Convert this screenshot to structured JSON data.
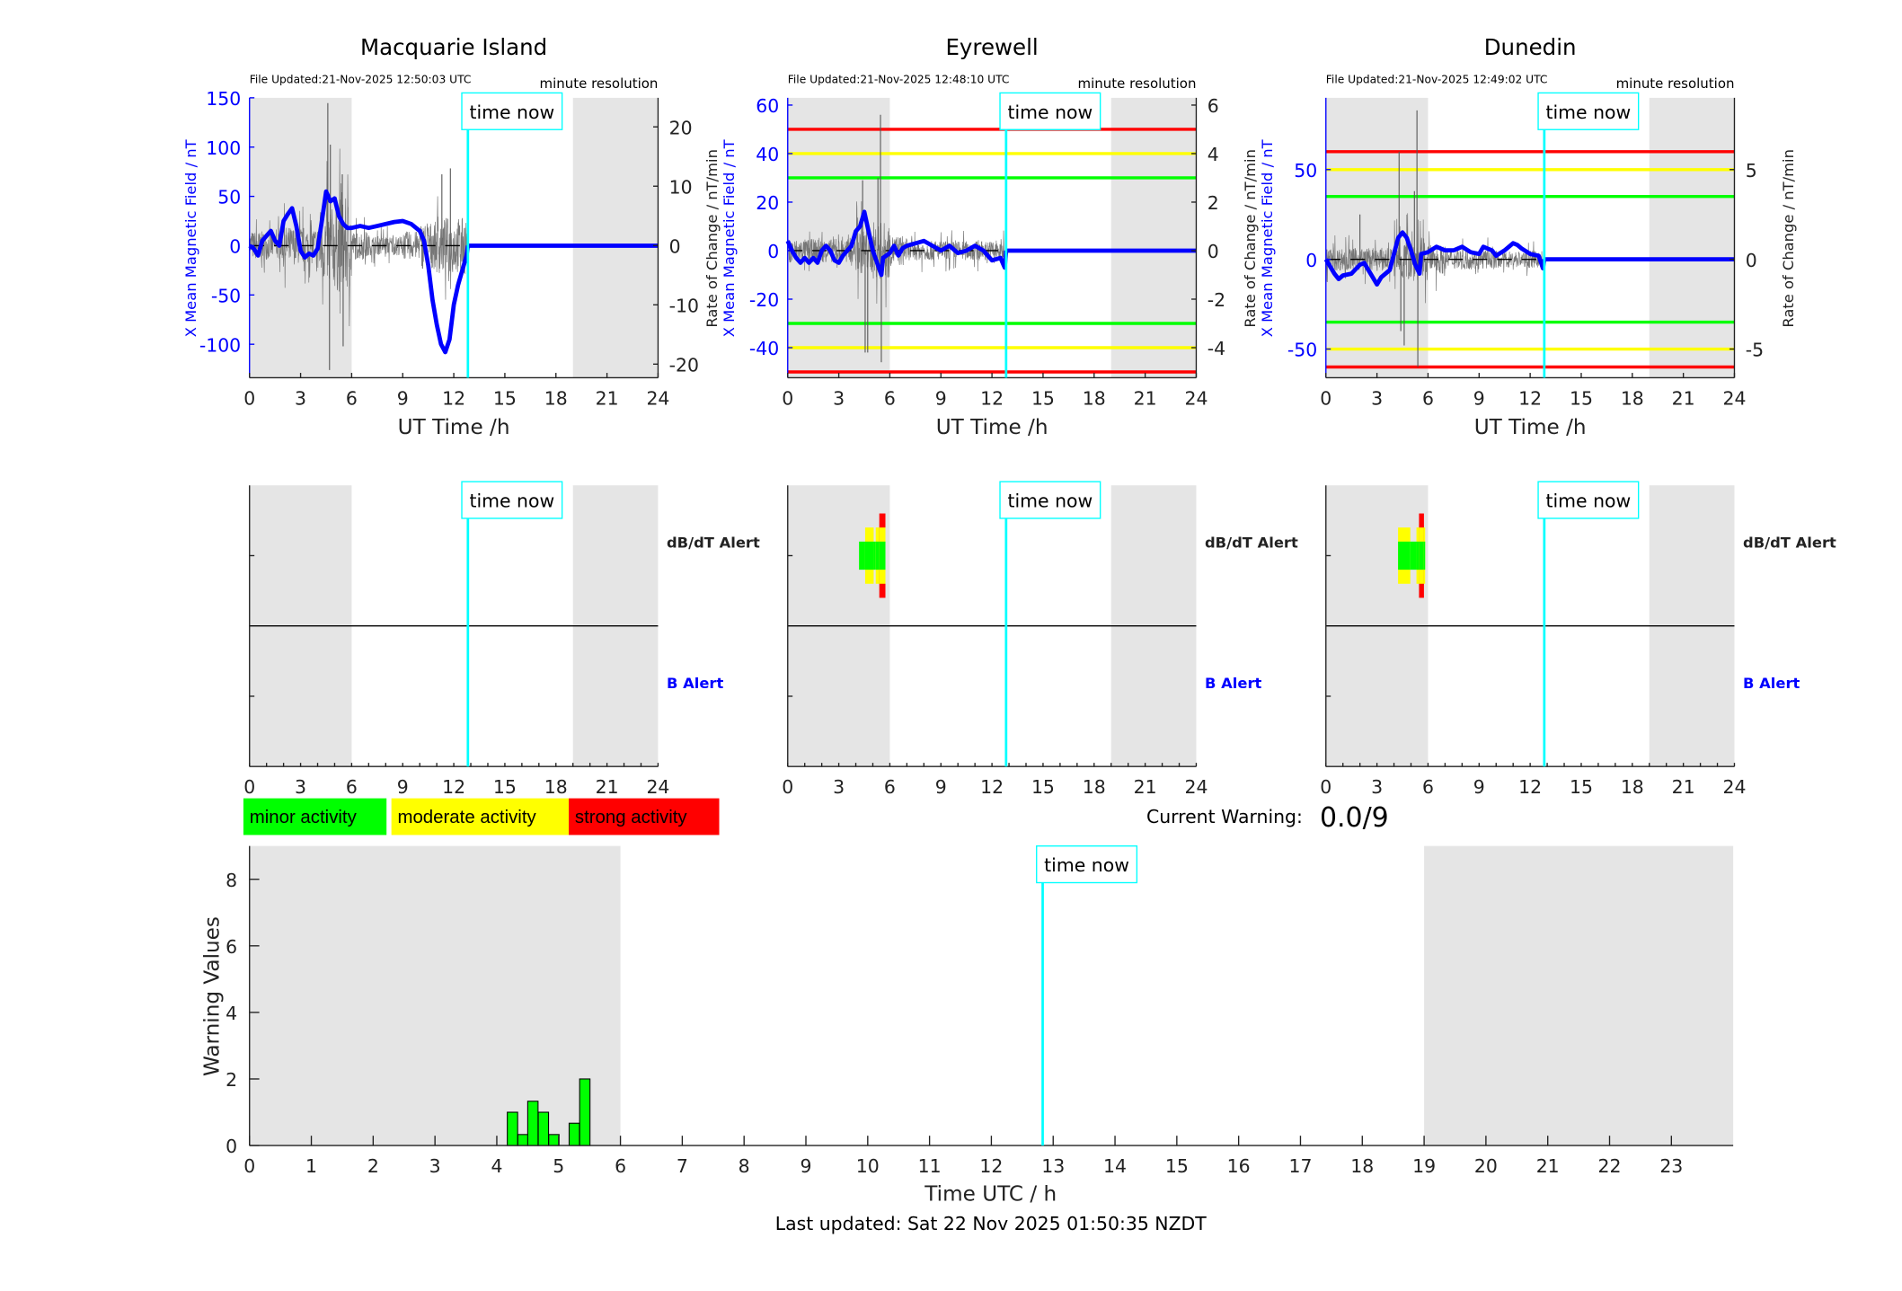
{
  "time_now_label": "time now",
  "time_now_h": 12.83,
  "night_bands": [
    [
      0,
      6
    ],
    [
      19,
      24
    ]
  ],
  "colors": {
    "minor": "#00ff00",
    "moderate": "#ffff00",
    "strong": "#ff0000",
    "now": "#00ffff",
    "trace": "#0000ff",
    "night": "#e5e5e5"
  },
  "top_xlabel": "UT Time /h",
  "left_ylabel": "X Mean Magnetic Field / nT",
  "right_ylabel": "Rate of Change / nT/min",
  "dbdt_alert_label": "dB/dT Alert",
  "b_alert_label": "B Alert",
  "xticks": [
    0,
    3,
    6,
    9,
    12,
    15,
    18,
    21,
    24
  ],
  "chart_data": [
    {
      "type": "line",
      "title": "Macquarie Island",
      "file_updated": "File Updated:21-Nov-2025 12:50:03 UTC",
      "resolution": "minute resolution",
      "xlim": [
        0,
        24
      ],
      "ylim_left": [
        -134,
        150
      ],
      "yticks_left": [
        -100,
        -50,
        0,
        50,
        100,
        150
      ],
      "ylim_right": [
        -22.3,
        24.9
      ],
      "yticks_right": [
        -20,
        -10,
        0,
        10,
        20
      ],
      "thresholds": [],
      "x": [
        0,
        0.25,
        0.5,
        0.75,
        1,
        1.25,
        1.5,
        1.75,
        2,
        2.25,
        2.5,
        2.75,
        3,
        3.25,
        3.5,
        3.75,
        4,
        4.25,
        4.5,
        4.75,
        5,
        5.25,
        5.5,
        5.75,
        6,
        6.5,
        7,
        7.5,
        8,
        8.5,
        9,
        9.5,
        10,
        10.25,
        10.5,
        10.75,
        11,
        11.25,
        11.5,
        11.75,
        12,
        12.25,
        12.5,
        12.75,
        12.83
      ],
      "y": [
        0,
        -3,
        -10,
        5,
        10,
        15,
        5,
        0,
        25,
        32,
        38,
        20,
        -5,
        -12,
        -8,
        -10,
        -3,
        25,
        55,
        45,
        48,
        30,
        22,
        18,
        18,
        20,
        18,
        20,
        22,
        24,
        25,
        22,
        15,
        5,
        -20,
        -55,
        -80,
        -100,
        -108,
        -95,
        -60,
        -40,
        -25,
        -10,
        0
      ],
      "dbdt_envelope": [
        3,
        3,
        4,
        4,
        8,
        10,
        3,
        2,
        2,
        3,
        5,
        6,
        6
      ],
      "dbdt_spikes": [
        [
          4.6,
          24
        ],
        [
          4.7,
          -21
        ],
        [
          4.75,
          17
        ],
        [
          5.45,
          12
        ],
        [
          5.5,
          -17
        ],
        [
          11.3,
          12
        ],
        [
          11.8,
          13
        ]
      ],
      "alerts": []
    },
    {
      "type": "line",
      "title": "Eyrewell",
      "file_updated": "File Updated:21-Nov-2025 12:48:10 UTC",
      "resolution": "minute resolution",
      "xlim": [
        0,
        24
      ],
      "ylim_left": [
        -52.4,
        63
      ],
      "yticks_left": [
        -40,
        -20,
        0,
        20,
        40,
        60
      ],
      "ylim_right": [
        -5.24,
        6.3
      ],
      "yticks_right": [
        -4,
        -2,
        0,
        2,
        4,
        6
      ],
      "thresholds": [
        [
          50,
          "strong"
        ],
        [
          40,
          "moderate"
        ],
        [
          30,
          "minor"
        ]
      ],
      "x": [
        0,
        0.25,
        0.5,
        0.75,
        1,
        1.25,
        1.5,
        1.75,
        2,
        2.25,
        2.5,
        2.75,
        3,
        3.25,
        3.5,
        3.75,
        4,
        4.25,
        4.5,
        4.75,
        5,
        5.25,
        5.5,
        5.6,
        6,
        6.25,
        6.5,
        6.75,
        7,
        7.5,
        8,
        8.5,
        9,
        9.5,
        10,
        10.5,
        11,
        11.5,
        12,
        12.5,
        12.75,
        12.83
      ],
      "y": [
        4,
        0,
        -3,
        -5,
        -3,
        -5,
        -3,
        -5,
        0,
        2,
        0,
        -4,
        -5,
        -2,
        0,
        2,
        8,
        10,
        16,
        8,
        0,
        -5,
        -10,
        -3,
        -1,
        2,
        -2,
        1,
        2,
        3,
        4,
        2,
        0,
        2,
        -1,
        0,
        2,
        0,
        -4,
        -3,
        -7,
        0
      ],
      "dbdt_envelope": [
        0.6,
        0.6,
        0.6,
        0.6,
        1.2,
        1.5,
        0.8,
        0.5,
        0.5,
        0.5,
        0.5,
        0.5,
        0.6
      ],
      "dbdt_spikes": [
        [
          4.4,
          2.9
        ],
        [
          4.55,
          -4.2
        ],
        [
          4.7,
          -4.2
        ],
        [
          5.3,
          3.0
        ],
        [
          5.45,
          5.6
        ],
        [
          5.5,
          -4.6
        ]
      ],
      "alerts": [
        [
          4.19,
          4.55,
          1
        ],
        [
          4.55,
          5.05,
          2
        ],
        [
          5.05,
          5.17,
          1
        ],
        [
          5.17,
          5.38,
          2
        ],
        [
          5.38,
          5.74,
          3
        ]
      ]
    },
    {
      "type": "line",
      "title": "Dunedin",
      "file_updated": "File Updated:21-Nov-2025 12:49:02 UTC",
      "resolution": "minute resolution",
      "xlim": [
        0,
        24
      ],
      "ylim_left": [
        -66,
        90
      ],
      "yticks_left": [
        -50,
        0,
        50
      ],
      "ylim_right": [
        -6.6,
        9.0
      ],
      "yticks_right": [
        -5,
        0,
        5
      ],
      "thresholds": [
        [
          60,
          "strong"
        ],
        [
          50,
          "moderate"
        ],
        [
          35,
          "minor"
        ]
      ],
      "x": [
        0,
        0.25,
        0.5,
        0.75,
        1,
        1.5,
        2,
        2.25,
        2.5,
        3,
        3.25,
        3.5,
        3.75,
        4,
        4.25,
        4.5,
        4.75,
        5,
        5.25,
        5.5,
        5.6,
        6,
        6.5,
        7,
        7.5,
        8,
        8.5,
        9,
        9.25,
        9.75,
        10,
        10.5,
        11,
        11.25,
        11.5,
        12,
        12.5,
        12.75,
        12.83
      ],
      "y": [
        0,
        -4,
        -8,
        -11,
        -9,
        -8,
        -3,
        -2,
        -6,
        -14,
        -10,
        -8,
        -6,
        3,
        12,
        15,
        12,
        5,
        -3,
        -8,
        3,
        4,
        7,
        5,
        5,
        7,
        4,
        3,
        7,
        5,
        2,
        5,
        9,
        8,
        6,
        3,
        2,
        -5,
        0
      ],
      "dbdt_envelope": [
        0.8,
        0.8,
        0.8,
        0.8,
        1.5,
        1.5,
        1,
        0.7,
        0.7,
        0.7,
        0.6,
        0.6,
        0.6
      ],
      "dbdt_spikes": [
        [
          4.3,
          6.0
        ],
        [
          4.4,
          -4.0
        ],
        [
          4.6,
          -4.8
        ],
        [
          5.2,
          3.8
        ],
        [
          5.35,
          8.3
        ],
        [
          5.4,
          -6.0
        ],
        [
          2.0,
          2.5
        ]
      ],
      "alerts": [
        [
          4.24,
          4.96,
          2
        ],
        [
          4.96,
          5.32,
          1
        ],
        [
          5.32,
          5.47,
          2
        ],
        [
          5.47,
          5.76,
          3
        ],
        [
          5.76,
          5.83,
          2
        ]
      ]
    },
    {
      "type": "bar",
      "title": "",
      "xlabel": "Time UTC / h",
      "ylabel": "Warning Values",
      "xlim": [
        0,
        24
      ],
      "ylim": [
        0,
        9
      ],
      "xticks": [
        0,
        1,
        2,
        3,
        4,
        5,
        6,
        7,
        8,
        9,
        10,
        11,
        12,
        13,
        14,
        15,
        16,
        17,
        18,
        19,
        20,
        21,
        22,
        23
      ],
      "yticks": [
        0,
        2,
        4,
        6,
        8
      ],
      "bar_width_h": 0.167,
      "x": [
        4.17,
        4.34,
        4.5,
        4.67,
        4.84,
        5.17,
        5.34
      ],
      "values": [
        1,
        0.33,
        1.33,
        1,
        0.33,
        0.67,
        2
      ]
    }
  ],
  "legend": [
    {
      "label": "minor activity",
      "level": "minor"
    },
    {
      "label": "moderate activity",
      "level": "moderate"
    },
    {
      "label": "strong activity",
      "level": "strong"
    }
  ],
  "current_warning_label": "Current Warning:",
  "current_warning_value": "0.0/9",
  "last_updated": "Last updated: Sat 22 Nov 2025 01:50:35 NZDT"
}
